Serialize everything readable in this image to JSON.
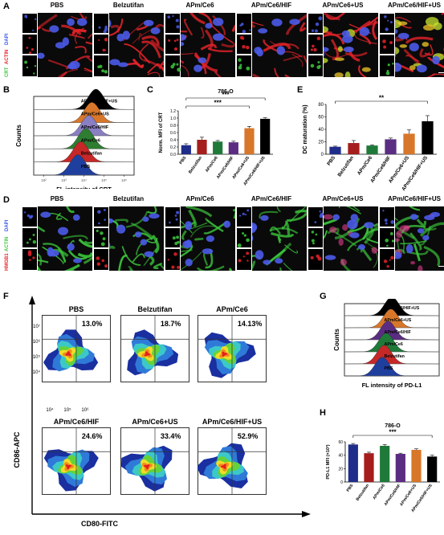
{
  "panelA": {
    "letter": "A",
    "titles": [
      "PBS",
      "Belzutifan",
      "APm/Ce6",
      "APm/Ce6/HIF",
      "APm/Ce6+US",
      "APm/Ce6/HIF+US"
    ],
    "channels": [
      "DAPI",
      "ACTIN",
      "CRT"
    ],
    "channel_colors": {
      "DAPI": "#3c5ae6",
      "ACTIN": "#e6232a",
      "CRT": "#3cc83c"
    }
  },
  "panelB": {
    "letter": "B",
    "labels": [
      "APm/Ce6/HIF+US",
      "APm/Ce6+US",
      "APm/Ce6/HIF",
      "APm/Ce6",
      "Belzutifan",
      "PBS"
    ],
    "colors": [
      "#000000",
      "#d8772a",
      "#8a7fc2",
      "#2e7d32",
      "#c62828",
      "#1f3f9e"
    ],
    "ylabel": "Counts",
    "xlabel": "FL intensity of CRT",
    "ticks": [
      "10²",
      "10³",
      "10⁴",
      "10⁵",
      "10⁶"
    ]
  },
  "panelC": {
    "letter": "C",
    "chart_data": {
      "type": "bar",
      "title": "786-O",
      "ylabel": "Norm. MFI of CRT",
      "categories": [
        "PBS",
        "Belzutifan",
        "APm/Ce6",
        "APm/Ce6/HIF",
        "APm/Ce6+US",
        "APm/Ce6/HIF+US"
      ],
      "values": [
        0.25,
        0.4,
        0.35,
        0.33,
        0.72,
        0.98
      ],
      "errors": [
        0.04,
        0.07,
        0.03,
        0.03,
        0.05,
        0.03
      ],
      "colors": [
        "#1f2d8a",
        "#a51d1d",
        "#1f7a3a",
        "#5b2d82",
        "#d8772a",
        "#000000"
      ],
      "ylim": [
        0,
        1.2
      ],
      "yticks": [
        "0.0",
        "0.2",
        "0.4",
        "0.6",
        "0.8",
        "1.0",
        "1.2"
      ],
      "significance": [
        "***",
        "***"
      ]
    }
  },
  "panelE": {
    "letter": "E",
    "chart_data": {
      "type": "bar",
      "ylabel": "DC maturation (%)",
      "categories": [
        "PBS",
        "Belzutifan",
        "APm/Ce6",
        "APm/Ce6/HIF",
        "APm/Ce6+US",
        "APm/Ce6/HIF+US"
      ],
      "values": [
        12,
        18,
        14,
        24,
        33,
        53
      ],
      "errors": [
        1,
        4,
        1,
        2,
        6,
        9
      ],
      "colors": [
        "#1f2d8a",
        "#a51d1d",
        "#1f7a3a",
        "#5b2d82",
        "#d8772a",
        "#000000"
      ],
      "ylim": [
        0,
        80
      ],
      "yticks": [
        "0",
        "20",
        "40",
        "60",
        "80"
      ],
      "significance": [
        "**"
      ]
    }
  },
  "panelD": {
    "letter": "D",
    "titles": [
      "PBS",
      "Belzutifan",
      "APm/Ce6",
      "APm/Ce6/HIF",
      "APm/Ce6+US",
      "APm/Ce6/HIF+US"
    ],
    "channels": [
      "DAPI",
      "ACTIN",
      "HMGB1"
    ],
    "channel_colors": {
      "DAPI": "#3c5ae6",
      "ACTIN": "#3cc83c",
      "HMGB1": "#e6232a"
    }
  },
  "panelF": {
    "letter": "F",
    "plots": [
      {
        "title": "PBS",
        "pct": "13.0%"
      },
      {
        "title": "Belzutifan",
        "pct": "18.7%"
      },
      {
        "title": "APm/Ce6",
        "pct": "14.13%"
      },
      {
        "title": "APm/Ce6/HIF",
        "pct": "24.6%"
      },
      {
        "title": "APm/Ce6+US",
        "pct": "33.4%"
      },
      {
        "title": "APm/Ce6/HIF+US",
        "pct": "52.9%"
      }
    ],
    "ylabel": "CD86-APC",
    "xlabel": "CD80-FITC",
    "yticks": [
      "10⁷",
      "10⁶",
      "10⁵",
      "10⁴"
    ],
    "xticks": [
      "10⁴",
      "10⁵",
      "10⁶"
    ]
  },
  "panelG": {
    "letter": "G",
    "labels": [
      "APm/Ce6/HIF+US",
      "APm/Ce6+US",
      "APm/Ce6/HIF",
      "APm/Ce6",
      "Belzutifan",
      "PBS"
    ],
    "colors": [
      "#000000",
      "#d8772a",
      "#5b2d82",
      "#1f7a3a",
      "#c62828",
      "#1f3f9e"
    ],
    "ylabel": "Counts",
    "xlabel": "FL intensity of PD-L1"
  },
  "panelH": {
    "letter": "H",
    "chart_data": {
      "type": "bar",
      "title": "786-O",
      "ylabel": "PD-L1 MFI (×10³)",
      "categories": [
        "PBS",
        "Belzutifan",
        "APm/Ce6",
        "APm/Ce6/HIF",
        "APm/Ce6+US",
        "APm/Ce6/HIF+US"
      ],
      "values": [
        56,
        43,
        54,
        42,
        48,
        38
      ],
      "errors": [
        1.5,
        1.5,
        2,
        1,
        1.5,
        2
      ],
      "colors": [
        "#1f2d8a",
        "#a51d1d",
        "#1f7a3a",
        "#5b2d82",
        "#d8772a",
        "#000000"
      ],
      "ylim": [
        0,
        60
      ],
      "yticks": [
        "0",
        "20",
        "40",
        "60"
      ],
      "significance": [
        "***"
      ]
    }
  }
}
